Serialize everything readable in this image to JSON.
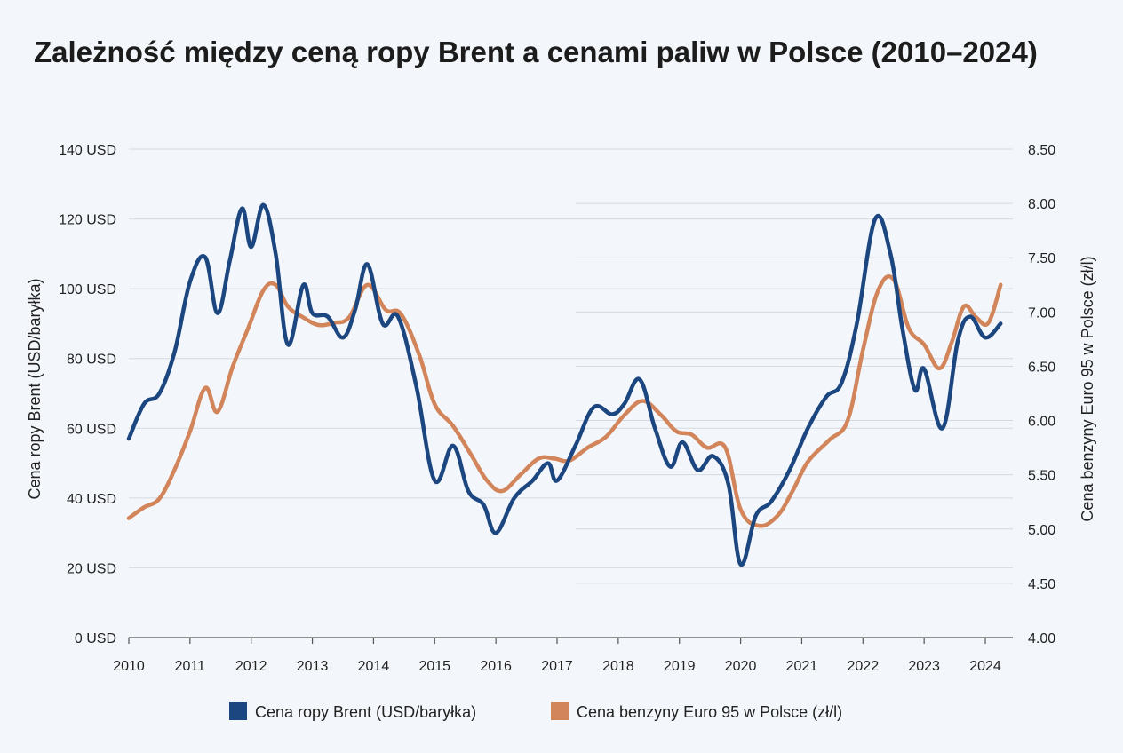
{
  "chart_data": {
    "type": "line",
    "title": "Zależność między ceną ropy Brent a cenami paliw w Polsce (2010–2024)",
    "ylabel_left": "Cena ropy Brent (USD/baryłka)",
    "ylabel_right": "Cena benzyny Euro 95 w Polsce (zł/l)",
    "xlim": [
      2010.0,
      2024.45
    ],
    "ylim_left": [
      0,
      140
    ],
    "ylim_right": [
      4.0,
      8.5
    ],
    "x_ticks": [
      "2010",
      "2011",
      "2012",
      "2013",
      "2014",
      "2015",
      "2016",
      "2017",
      "2018",
      "2019",
      "2020",
      "2021",
      "2022",
      "2023",
      "2024"
    ],
    "y_left_ticks": [
      "0 USD",
      "20 USD",
      "40 USD",
      "60 USD",
      "80 USD",
      "100 USD",
      "120 USD",
      "140 USD"
    ],
    "y_right_ticks": [
      "4.00",
      "4.50",
      "5.00",
      "5.50",
      "6.00",
      "6.50",
      "7.00",
      "7.50",
      "8.00",
      "8.50"
    ],
    "grid": true,
    "legend_position": "bottom",
    "series": [
      {
        "name": "Cena ropy Brent (USD/baryłka)",
        "axis": "left",
        "color": "#1b4680",
        "points": [
          [
            2010.0,
            57
          ],
          [
            2010.25,
            67
          ],
          [
            2010.5,
            70
          ],
          [
            2010.75,
            82
          ],
          [
            2011.0,
            102
          ],
          [
            2011.25,
            109
          ],
          [
            2011.45,
            93
          ],
          [
            2011.65,
            108
          ],
          [
            2011.85,
            123
          ],
          [
            2012.0,
            112
          ],
          [
            2012.2,
            124
          ],
          [
            2012.4,
            110
          ],
          [
            2012.6,
            84
          ],
          [
            2012.85,
            101
          ],
          [
            2013.0,
            93
          ],
          [
            2013.25,
            92
          ],
          [
            2013.5,
            86
          ],
          [
            2013.7,
            94
          ],
          [
            2013.9,
            107
          ],
          [
            2014.15,
            90
          ],
          [
            2014.4,
            92
          ],
          [
            2014.7,
            72
          ],
          [
            2015.0,
            45
          ],
          [
            2015.3,
            55
          ],
          [
            2015.55,
            42
          ],
          [
            2015.8,
            38
          ],
          [
            2016.0,
            30
          ],
          [
            2016.3,
            40
          ],
          [
            2016.6,
            45
          ],
          [
            2016.85,
            50
          ],
          [
            2017.0,
            45
          ],
          [
            2017.3,
            55
          ],
          [
            2017.6,
            66
          ],
          [
            2017.9,
            64
          ],
          [
            2018.1,
            67
          ],
          [
            2018.35,
            74
          ],
          [
            2018.6,
            60
          ],
          [
            2018.85,
            49
          ],
          [
            2019.05,
            56
          ],
          [
            2019.3,
            48
          ],
          [
            2019.55,
            52
          ],
          [
            2019.8,
            44
          ],
          [
            2020.0,
            21
          ],
          [
            2020.25,
            35
          ],
          [
            2020.5,
            39
          ],
          [
            2020.8,
            48
          ],
          [
            2021.1,
            60
          ],
          [
            2021.4,
            69
          ],
          [
            2021.65,
            73
          ],
          [
            2021.9,
            90
          ],
          [
            2022.2,
            120
          ],
          [
            2022.45,
            110
          ],
          [
            2022.65,
            88
          ],
          [
            2022.85,
            71
          ],
          [
            2023.0,
            77
          ],
          [
            2023.3,
            60
          ],
          [
            2023.55,
            85
          ],
          [
            2023.75,
            92
          ],
          [
            2024.0,
            86
          ],
          [
            2024.25,
            90
          ]
        ]
      },
      {
        "name": "Cena benzyny Euro 95 w Polsce (zł/l)",
        "axis": "right",
        "color": "#d2855a",
        "points": [
          [
            2010.0,
            5.1
          ],
          [
            2010.25,
            5.2
          ],
          [
            2010.5,
            5.28
          ],
          [
            2010.75,
            5.55
          ],
          [
            2011.0,
            5.9
          ],
          [
            2011.25,
            6.3
          ],
          [
            2011.45,
            6.08
          ],
          [
            2011.7,
            6.5
          ],
          [
            2011.95,
            6.85
          ],
          [
            2012.2,
            7.2
          ],
          [
            2012.4,
            7.25
          ],
          [
            2012.6,
            7.05
          ],
          [
            2012.85,
            6.95
          ],
          [
            2013.1,
            6.88
          ],
          [
            2013.35,
            6.9
          ],
          [
            2013.6,
            6.95
          ],
          [
            2013.9,
            7.25
          ],
          [
            2014.2,
            7.02
          ],
          [
            2014.45,
            6.98
          ],
          [
            2014.75,
            6.6
          ],
          [
            2015.0,
            6.15
          ],
          [
            2015.3,
            5.95
          ],
          [
            2015.6,
            5.68
          ],
          [
            2015.85,
            5.45
          ],
          [
            2016.1,
            5.35
          ],
          [
            2016.4,
            5.5
          ],
          [
            2016.7,
            5.65
          ],
          [
            2016.95,
            5.65
          ],
          [
            2017.2,
            5.63
          ],
          [
            2017.5,
            5.75
          ],
          [
            2017.8,
            5.85
          ],
          [
            2018.1,
            6.05
          ],
          [
            2018.4,
            6.18
          ],
          [
            2018.7,
            6.05
          ],
          [
            2018.95,
            5.9
          ],
          [
            2019.2,
            5.87
          ],
          [
            2019.45,
            5.75
          ],
          [
            2019.75,
            5.75
          ],
          [
            2020.0,
            5.18
          ],
          [
            2020.3,
            5.03
          ],
          [
            2020.6,
            5.12
          ],
          [
            2020.85,
            5.35
          ],
          [
            2021.1,
            5.62
          ],
          [
            2021.45,
            5.82
          ],
          [
            2021.75,
            6.0
          ],
          [
            2022.0,
            6.65
          ],
          [
            2022.25,
            7.2
          ],
          [
            2022.5,
            7.3
          ],
          [
            2022.75,
            6.85
          ],
          [
            2023.0,
            6.7
          ],
          [
            2023.25,
            6.48
          ],
          [
            2023.45,
            6.72
          ],
          [
            2023.65,
            7.05
          ],
          [
            2023.85,
            6.95
          ],
          [
            2024.05,
            6.9
          ],
          [
            2024.25,
            7.25
          ]
        ]
      }
    ]
  }
}
